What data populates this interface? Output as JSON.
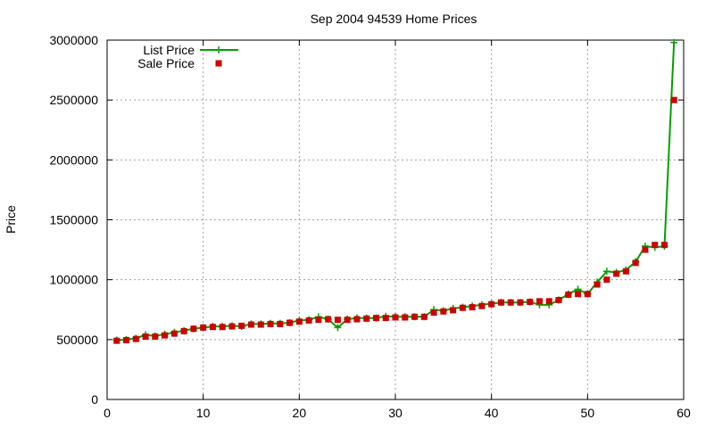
{
  "chart_data": {
    "type": "line",
    "title": "Sep 2004 94539 Home Prices",
    "xlabel": "",
    "ylabel": "Price",
    "xlim": [
      0,
      60
    ],
    "ylim": [
      0,
      3000000
    ],
    "xticks": [
      0,
      10,
      20,
      30,
      40,
      50,
      60
    ],
    "yticks": [
      0,
      500000,
      1000000,
      1500000,
      2000000,
      2500000,
      3000000
    ],
    "grid": true,
    "legend_position": "top-left",
    "colors": {
      "list": "#00a000",
      "sale": "#cc0000"
    },
    "x": [
      1,
      2,
      3,
      4,
      5,
      6,
      7,
      8,
      9,
      10,
      11,
      12,
      13,
      14,
      15,
      16,
      17,
      18,
      19,
      20,
      21,
      22,
      23,
      24,
      25,
      26,
      27,
      28,
      29,
      30,
      31,
      32,
      33,
      34,
      35,
      36,
      37,
      38,
      39,
      40,
      41,
      42,
      43,
      44,
      45,
      46,
      47,
      48,
      49,
      50,
      51,
      52,
      53,
      54,
      55,
      56,
      57,
      58,
      59
    ],
    "series": [
      {
        "name": "List Price",
        "style": "linespoints",
        "values": [
          495000,
          500000,
          510000,
          540000,
          530000,
          545000,
          560000,
          575000,
          590000,
          600000,
          610000,
          610000,
          615000,
          610000,
          630000,
          630000,
          635000,
          635000,
          640000,
          660000,
          665000,
          690000,
          670000,
          600000,
          670000,
          680000,
          680000,
          680000,
          695000,
          690000,
          690000,
          690000,
          690000,
          750000,
          740000,
          760000,
          770000,
          780000,
          790000,
          800000,
          810000,
          810000,
          810000,
          815000,
          790000,
          790000,
          830000,
          880000,
          920000,
          880000,
          980000,
          1070000,
          1060000,
          1080000,
          1150000,
          1280000,
          1270000,
          1280000,
          2980000
        ]
      },
      {
        "name": "Sale Price",
        "style": "points",
        "values": [
          490000,
          495000,
          505000,
          525000,
          525000,
          535000,
          550000,
          570000,
          590000,
          600000,
          605000,
          605000,
          610000,
          615000,
          625000,
          625000,
          630000,
          630000,
          640000,
          650000,
          660000,
          665000,
          670000,
          665000,
          665000,
          670000,
          675000,
          680000,
          680000,
          685000,
          685000,
          690000,
          690000,
          725000,
          735000,
          745000,
          765000,
          770000,
          780000,
          795000,
          810000,
          810000,
          810000,
          815000,
          820000,
          820000,
          830000,
          875000,
          880000,
          880000,
          960000,
          1000000,
          1050000,
          1070000,
          1140000,
          1250000,
          1290000,
          1290000,
          2500000
        ]
      }
    ]
  }
}
